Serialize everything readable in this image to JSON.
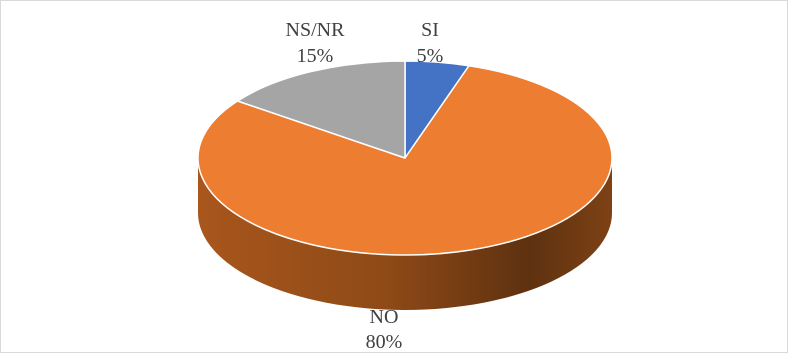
{
  "chart_data": {
    "type": "pie",
    "title": "",
    "slices": [
      {
        "label": "SI",
        "value": 5,
        "value_label": "5%",
        "color": "#4472C4"
      },
      {
        "label": "NO",
        "value": 80,
        "value_label": "80%",
        "color": "#ED7D31"
      },
      {
        "label": "NS/NR",
        "value": 15,
        "value_label": "15%",
        "color": "#A5A5A5"
      }
    ],
    "three_d": true,
    "legend": "none",
    "data_labels": "category and percentage"
  }
}
